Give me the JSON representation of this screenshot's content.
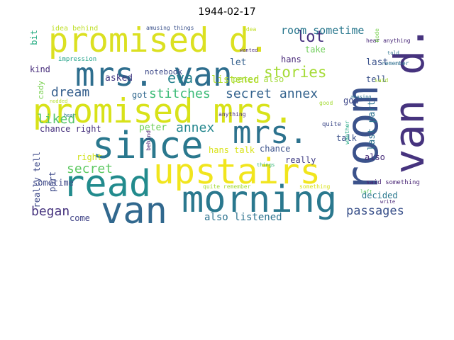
{
  "title": "1944-02-17",
  "words": [
    {
      "text": "promised d.",
      "color": "#dbe021"
    },
    {
      "text": "mrs. van",
      "color": "#2e6e8e"
    },
    {
      "text": "room",
      "color": "#3b528b"
    },
    {
      "text": "van d.",
      "color": "#46337e"
    },
    {
      "text": "promised mrs.",
      "color": "#d8e219"
    },
    {
      "text": "since",
      "color": "#2a788e"
    },
    {
      "text": "upstairs",
      "color": "#f1e51d"
    },
    {
      "text": "mrs.",
      "color": "#2c728e"
    },
    {
      "text": "read",
      "color": "#228b8d"
    },
    {
      "text": "van",
      "color": "#31688e"
    },
    {
      "text": "morning",
      "color": "#2a788e"
    },
    {
      "text": "lot",
      "color": "#46317e"
    },
    {
      "text": "room sometime",
      "color": "#2a788e"
    },
    {
      "text": "stories",
      "color": "#a5db36"
    },
    {
      "text": "eva",
      "color": "#26828e"
    },
    {
      "text": "dream",
      "color": "#355f8d"
    },
    {
      "text": "stitches",
      "color": "#3aba76"
    },
    {
      "text": "secret annex",
      "color": "#33628d"
    },
    {
      "text": "liked",
      "color": "#54c568"
    },
    {
      "text": "annex",
      "color": "#24878e"
    },
    {
      "text": "secret",
      "color": "#5ec962"
    },
    {
      "text": "began",
      "color": "#46337e"
    },
    {
      "text": "passages",
      "color": "#3b528b"
    },
    {
      "text": "also listened",
      "color": "#2c728e"
    },
    {
      "text": "listened",
      "color": "#b5de2b"
    },
    {
      "text": "peter also",
      "color": "#a2da37"
    },
    {
      "text": "notebook",
      "color": "#3e4a89"
    },
    {
      "text": "asked",
      "color": "#443a83"
    },
    {
      "text": "got",
      "color": "#31688e"
    },
    {
      "text": "peter",
      "color": "#6ccd5a"
    },
    {
      "text": "kind",
      "color": "#472d7b"
    },
    {
      "text": "chance right",
      "color": "#46317e"
    },
    {
      "text": "right",
      "color": "#d0e11c"
    },
    {
      "text": "hans talk",
      "color": "#d8e219"
    },
    {
      "text": "chance",
      "color": "#3b528b"
    },
    {
      "text": "really",
      "color": "#423f85"
    },
    {
      "text": "sometime",
      "color": "#3e4989"
    },
    {
      "text": "come",
      "color": "#414487"
    },
    {
      "text": "part",
      "color": "#3e4a89"
    },
    {
      "text": "really tell",
      "color": "#3e4a89"
    },
    {
      "text": "cady",
      "color": "#7ad151"
    },
    {
      "text": "bit",
      "color": "#25ac82"
    },
    {
      "text": "let",
      "color": "#35608d"
    },
    {
      "text": "hans",
      "color": "#482878"
    },
    {
      "text": "take",
      "color": "#6ece58"
    },
    {
      "text": "last",
      "color": "#3b528b"
    },
    {
      "text": "tell",
      "color": "#3b528b"
    },
    {
      "text": "god",
      "color": "#3f4889"
    },
    {
      "text": "talk",
      "color": "#3b528b"
    },
    {
      "text": "last part",
      "color": "#2c728e"
    },
    {
      "text": "also",
      "color": "#472c7a"
    },
    {
      "text": "decided",
      "color": "#2a788e"
    },
    {
      "text": "idea behind",
      "color": "#bddf26"
    },
    {
      "text": "amusing things",
      "color": "#3b528b"
    },
    {
      "text": "impression",
      "color": "#1fa187"
    },
    {
      "text": "idea",
      "color": "#c0df25"
    },
    {
      "text": "wanted",
      "color": "#482475"
    },
    {
      "text": "hear anything",
      "color": "#482878"
    },
    {
      "text": "told",
      "color": "#2c728e"
    },
    {
      "text": "remember",
      "color": "#2e6e8e"
    },
    {
      "text": "mode",
      "color": "#7ad151"
    },
    {
      "text": "said",
      "color": "#a8db34"
    },
    {
      "text": "amusing",
      "color": "#2c728e"
    },
    {
      "text": "see",
      "color": "#3b528b"
    },
    {
      "text": "nodded",
      "color": "#b5de2b"
    },
    {
      "text": "hear",
      "color": "#2a788e"
    },
    {
      "text": "anything",
      "color": "#472d7b"
    },
    {
      "text": "good",
      "color": "#a5db36"
    },
    {
      "text": "quite",
      "color": "#3e4a89"
    },
    {
      "text": "behind",
      "color": "#481a6c"
    },
    {
      "text": "things",
      "color": "#35b779"
    },
    {
      "text": "whether",
      "color": "#22a884"
    },
    {
      "text": "quite remember",
      "color": "#a5db36"
    },
    {
      "text": "something",
      "color": "#d8e219"
    },
    {
      "text": "said something",
      "color": "#482475"
    },
    {
      "text": "left",
      "color": "#5ec962"
    },
    {
      "text": "write",
      "color": "#482475"
    }
  ]
}
